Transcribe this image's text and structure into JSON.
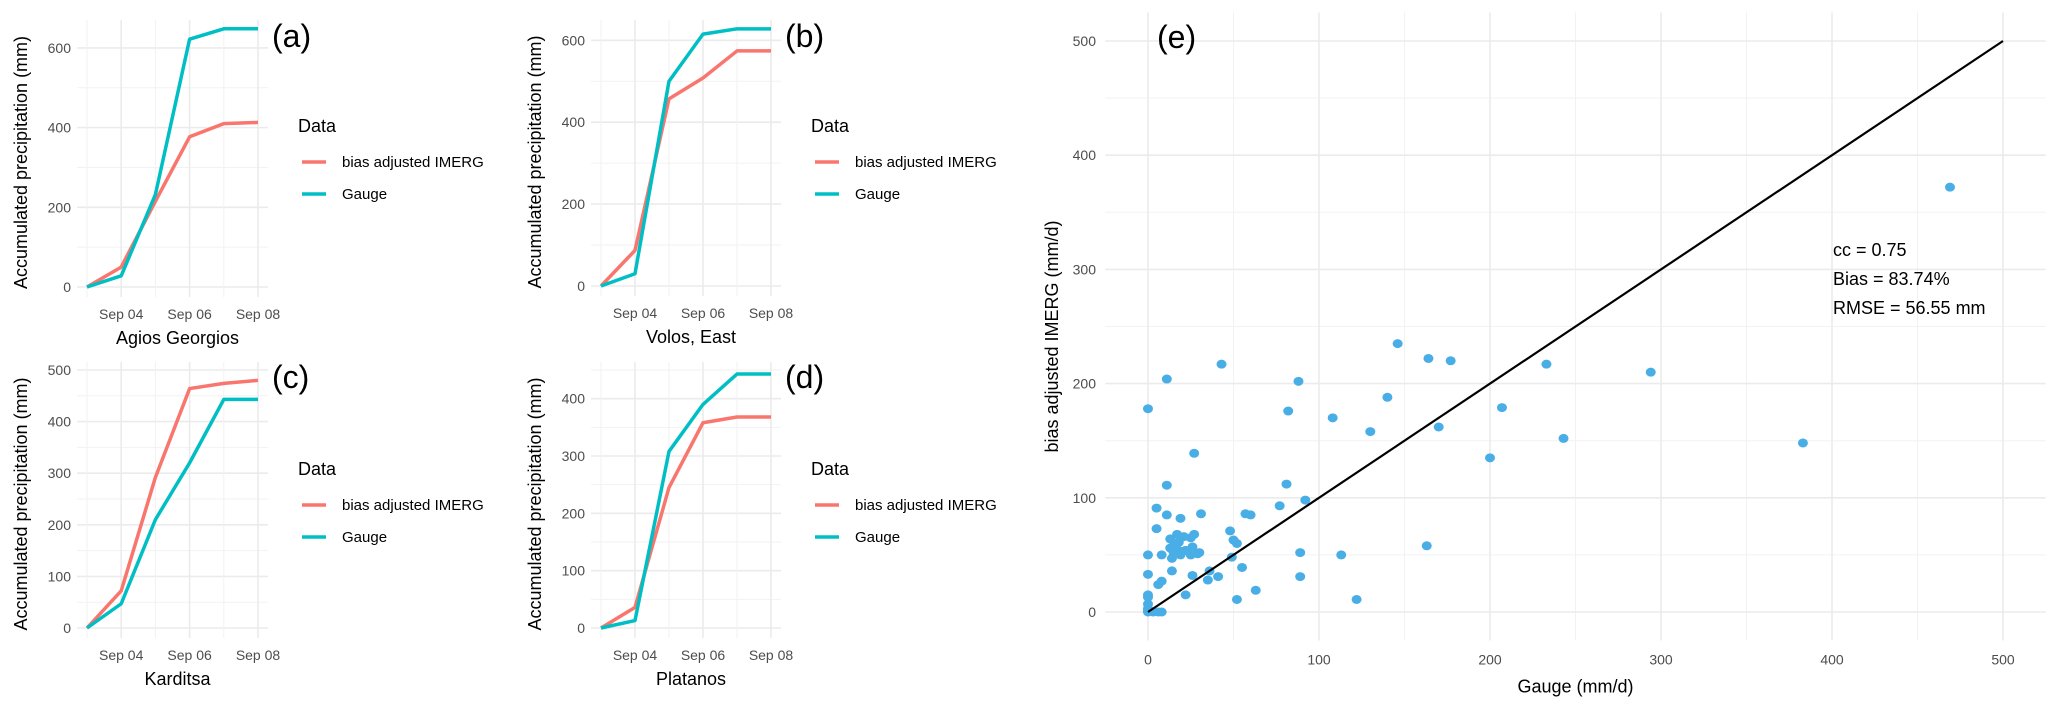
{
  "colors": {
    "imerg": "#F8766D",
    "gauge": "#00BFC4",
    "points": "#4AAEE6",
    "identity_line": "#000000",
    "grid_major": "#EBEBEB",
    "grid_minor": "#F2F2F2"
  },
  "chart_data": [
    {
      "id": "a",
      "type": "line",
      "panel_label": "(a)",
      "xlabel": "Agios Georgios",
      "ylabel": "Accumulated precipitation (mm)",
      "x": [
        "Sep 03",
        "Sep 04",
        "Sep 05",
        "Sep 06",
        "Sep 07",
        "Sep 08"
      ],
      "x_ticks": [
        "Sep 04",
        "Sep 06",
        "Sep 08"
      ],
      "y_ticks": [
        0,
        200,
        400,
        600
      ],
      "ylim": [
        0,
        650
      ],
      "legend": {
        "title": "Data",
        "position": "right",
        "entries": [
          "bias adjusted IMERG",
          "Gauge"
        ]
      },
      "series": [
        {
          "name": "bias adjusted IMERG",
          "values": [
            0,
            50,
            215,
            377,
            410,
            413
          ]
        },
        {
          "name": "Gauge",
          "values": [
            0,
            28,
            232,
            622,
            648,
            648
          ]
        }
      ]
    },
    {
      "id": "b",
      "type": "line",
      "panel_label": "(b)",
      "xlabel": "Volos, East",
      "ylabel": "Accumulated precipitation (mm)",
      "x": [
        "Sep 03",
        "Sep 04",
        "Sep 05",
        "Sep 06",
        "Sep 07",
        "Sep 08"
      ],
      "x_ticks": [
        "Sep 04",
        "Sep 06",
        "Sep 08"
      ],
      "y_ticks": [
        0,
        200,
        400,
        600
      ],
      "ylim": [
        0,
        630
      ],
      "legend": {
        "title": "Data",
        "position": "right",
        "entries": [
          "bias adjusted IMERG",
          "Gauge"
        ]
      },
      "series": [
        {
          "name": "bias adjusted IMERG",
          "values": [
            0,
            87,
            457,
            508,
            574,
            574
          ]
        },
        {
          "name": "Gauge",
          "values": [
            0,
            30,
            500,
            615,
            628,
            628
          ]
        }
      ]
    },
    {
      "id": "c",
      "type": "line",
      "panel_label": "(c)",
      "xlabel": "Karditsa",
      "ylabel": "Accumulated precipitation (mm)",
      "x": [
        "Sep 03",
        "Sep 04",
        "Sep 05",
        "Sep 06",
        "Sep 07",
        "Sep 08"
      ],
      "x_ticks": [
        "Sep 04",
        "Sep 06",
        "Sep 08"
      ],
      "y_ticks": [
        0,
        100,
        200,
        300,
        400,
        500
      ],
      "ylim": [
        0,
        500
      ],
      "legend": {
        "title": "Data",
        "position": "right",
        "entries": [
          "bias adjusted IMERG",
          "Gauge"
        ]
      },
      "series": [
        {
          "name": "bias adjusted IMERG",
          "values": [
            0,
            72,
            292,
            464,
            474,
            480
          ]
        },
        {
          "name": "Gauge",
          "values": [
            0,
            47,
            210,
            320,
            443,
            443
          ]
        }
      ]
    },
    {
      "id": "d",
      "type": "line",
      "panel_label": "(d)",
      "xlabel": "Platanos",
      "ylabel": "Accumulated precipitation (mm)",
      "x": [
        "Sep 03",
        "Sep 04",
        "Sep 05",
        "Sep 06",
        "Sep 07",
        "Sep 08"
      ],
      "x_ticks": [
        "Sep 04",
        "Sep 06",
        "Sep 08"
      ],
      "y_ticks": [
        0,
        100,
        200,
        300,
        400
      ],
      "ylim": [
        0,
        450
      ],
      "legend": {
        "title": "Data",
        "position": "right",
        "entries": [
          "bias adjusted IMERG",
          "Gauge"
        ]
      },
      "series": [
        {
          "name": "bias adjusted IMERG",
          "values": [
            0,
            36,
            245,
            358,
            368,
            368
          ]
        },
        {
          "name": "Gauge",
          "values": [
            0,
            13,
            308,
            390,
            443,
            443
          ]
        }
      ]
    },
    {
      "id": "e",
      "type": "scatter",
      "panel_label": "(e)",
      "xlabel": "Gauge (mm/d)",
      "ylabel": "bias adjusted IMERG (mm/d)",
      "x_ticks": [
        0,
        100,
        200,
        300,
        400,
        500
      ],
      "y_ticks": [
        0,
        100,
        200,
        300,
        400,
        500
      ],
      "xlim": [
        -25,
        525
      ],
      "ylim": [
        -25,
        525
      ],
      "identity_line": {
        "from": [
          0,
          0
        ],
        "to": [
          500,
          500
        ]
      },
      "annotations": [
        "cc = 0.75",
        "Bias = 83.74%",
        "RMSE = 56.55 mm"
      ],
      "points": [
        [
          0,
          178
        ],
        [
          0,
          50
        ],
        [
          0,
          33
        ],
        [
          0,
          15
        ],
        [
          0,
          13
        ],
        [
          0,
          7
        ],
        [
          0,
          3
        ],
        [
          0,
          1
        ],
        [
          0,
          0
        ],
        [
          3,
          0
        ],
        [
          6,
          0
        ],
        [
          8,
          0
        ],
        [
          5,
          91
        ],
        [
          5,
          73
        ],
        [
          6,
          24
        ],
        [
          8,
          27
        ],
        [
          8,
          50
        ],
        [
          11,
          204
        ],
        [
          11,
          111
        ],
        [
          11,
          85
        ],
        [
          13,
          64
        ],
        [
          13,
          56
        ],
        [
          14,
          47
        ],
        [
          14,
          36
        ],
        [
          15,
          58
        ],
        [
          15,
          52
        ],
        [
          17,
          68
        ],
        [
          17,
          55
        ],
        [
          18,
          61
        ],
        [
          19,
          50
        ],
        [
          19,
          65
        ],
        [
          19,
          82
        ],
        [
          20,
          53
        ],
        [
          21,
          66
        ],
        [
          22,
          54
        ],
        [
          22,
          15
        ],
        [
          25,
          65
        ],
        [
          25,
          50
        ],
        [
          26,
          57
        ],
        [
          26,
          32
        ],
        [
          27,
          68
        ],
        [
          27,
          139
        ],
        [
          29,
          51
        ],
        [
          30,
          52
        ],
        [
          31,
          86
        ],
        [
          35,
          28
        ],
        [
          36,
          36
        ],
        [
          41,
          31
        ],
        [
          43,
          217
        ],
        [
          48,
          71
        ],
        [
          49,
          48
        ],
        [
          50,
          63
        ],
        [
          52,
          60
        ],
        [
          52,
          11
        ],
        [
          55,
          39
        ],
        [
          57,
          86
        ],
        [
          60,
          85
        ],
        [
          63,
          19
        ],
        [
          77,
          93
        ],
        [
          81,
          112
        ],
        [
          82,
          176
        ],
        [
          88,
          202
        ],
        [
          89,
          52
        ],
        [
          89,
          31
        ],
        [
          92,
          98
        ],
        [
          108,
          170
        ],
        [
          113,
          50
        ],
        [
          122,
          11
        ],
        [
          130,
          158
        ],
        [
          140,
          188
        ],
        [
          146,
          235
        ],
        [
          163,
          58
        ],
        [
          164,
          222
        ],
        [
          170,
          162
        ],
        [
          177,
          220
        ],
        [
          200,
          135
        ],
        [
          207,
          179
        ],
        [
          233,
          217
        ],
        [
          243,
          152
        ],
        [
          294,
          210
        ],
        [
          383,
          148
        ],
        [
          469,
          372
        ]
      ]
    }
  ]
}
